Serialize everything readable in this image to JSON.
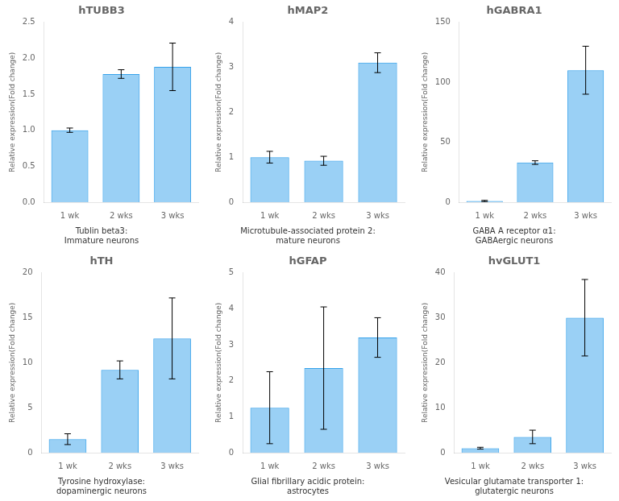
{
  "chart_data": [
    {
      "type": "bar",
      "title": "hTUBB3",
      "subtitle": "Tublin beta3:\nImmature neurons",
      "categories": [
        "1 wk",
        "2 wks",
        "3 wks"
      ],
      "values": [
        1.0,
        1.78,
        1.88
      ],
      "errors": [
        0.03,
        0.06,
        0.33
      ],
      "ylim": [
        0,
        2.5
      ],
      "yticks": [
        {
          "value": 0,
          "label": "0.0"
        },
        0.5,
        {
          "value": 1,
          "label": "1.0"
        },
        1.5,
        {
          "value": 2,
          "label": "2.0"
        },
        2.5
      ],
      "ylabel": "Relative expression(Fold change)",
      "grid": false
    },
    {
      "type": "bar",
      "title": "hMAP2",
      "subtitle": "Microtubule-associated protein 2:\nmature neurons",
      "categories": [
        "1 wk",
        "2 wks",
        "3 wks"
      ],
      "values": [
        1.0,
        0.92,
        3.1
      ],
      "errors": [
        0.13,
        0.1,
        0.22
      ],
      "ylim": [
        0,
        4
      ],
      "yticks": [
        0,
        1,
        2,
        3,
        4
      ],
      "ylabel": "Relative expression(Fold change)",
      "grid": false
    },
    {
      "type": "bar",
      "title": "hGABRA1",
      "subtitle": "GABA A receptor α1:\nGABAergic neurons",
      "categories": [
        "1 wk",
        "2 wks",
        "3 wks"
      ],
      "values": [
        1.0,
        33.0,
        110.0
      ],
      "errors": [
        0.5,
        1.5,
        20.0
      ],
      "ylim": [
        0,
        150
      ],
      "yticks": [
        0,
        50,
        100,
        150
      ],
      "ylabel": "Relative expression(Fold change)",
      "grid": false
    },
    {
      "type": "bar",
      "title": "hTH",
      "subtitle": "Tyrosine hydroxylase:\ndopaminergic neurons",
      "categories": [
        "1 wk",
        "2 wks",
        "3 wks"
      ],
      "values": [
        1.5,
        9.2,
        12.7
      ],
      "errors": [
        0.6,
        1.0,
        4.5
      ],
      "ylim": [
        0,
        20
      ],
      "yticks": [
        0,
        5,
        10,
        15,
        20
      ],
      "ylabel": "Relative expression(Fold change)",
      "grid": false
    },
    {
      "type": "bar",
      "title": "hGFAP",
      "subtitle": "Glial fibrillary acidic protein:\nastrocytes",
      "categories": [
        "1 wk",
        "2 wks",
        "3 wks"
      ],
      "values": [
        1.25,
        2.35,
        3.2
      ],
      "errors": [
        1.0,
        1.7,
        0.55
      ],
      "ylim": [
        0,
        5
      ],
      "yticks": [
        0,
        1,
        2,
        3,
        4,
        5
      ],
      "ylabel": "Relative expression(Fold change)",
      "grid": false
    },
    {
      "type": "bar",
      "title": "hvGLUT1",
      "subtitle": "Vesicular glutamate transporter 1:\nglutatergic neurons",
      "categories": [
        "1 wk",
        "2 wks",
        "3 wks"
      ],
      "values": [
        1.0,
        3.5,
        30.0
      ],
      "errors": [
        0.2,
        1.5,
        8.5
      ],
      "ylim": [
        0,
        40
      ],
      "yticks": [
        0,
        10,
        20,
        30,
        40
      ],
      "ylabel": "Relative expression(Fold change)",
      "grid": false
    }
  ]
}
